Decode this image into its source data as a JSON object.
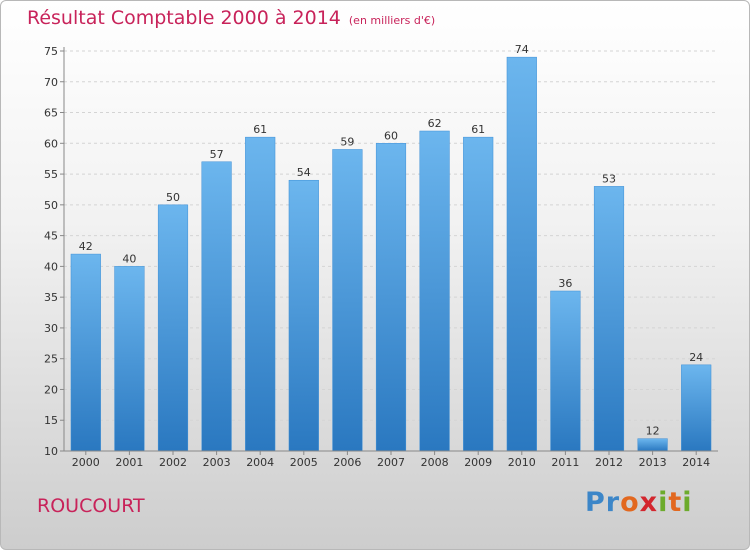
{
  "chart_data": {
    "type": "bar",
    "title": "Résultat Comptable 2000 à 2014",
    "subtitle": "(en milliers d'€)",
    "categories": [
      "2000",
      "2001",
      "2002",
      "2003",
      "2004",
      "2005",
      "2006",
      "2007",
      "2008",
      "2009",
      "2010",
      "2011",
      "2012",
      "2013",
      "2014"
    ],
    "values": [
      42,
      40,
      50,
      57,
      61,
      54,
      59,
      60,
      62,
      61,
      74,
      36,
      53,
      12,
      24
    ],
    "ylim": [
      10,
      75
    ],
    "yticks": [
      10,
      15,
      20,
      25,
      30,
      35,
      40,
      45,
      50,
      55,
      60,
      65,
      70,
      75
    ],
    "grid": true,
    "bar_color": "#3d8fd6",
    "bar_color_light": "#6cb6ee",
    "bar_color_dark": "#2a78c0"
  },
  "footer": {
    "commune": "ROUCOURT",
    "logo": {
      "p1": "Pr",
      "p2": "o",
      "p3": "x",
      "p4": "i",
      "p5": "t",
      "p6": "i"
    }
  }
}
